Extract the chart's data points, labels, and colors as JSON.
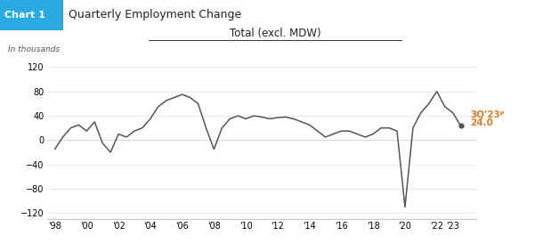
{
  "chart_label": "Chart 1",
  "chart_label_bg": "#29abe2",
  "title_main": "Quarterly Employment Change",
  "subtitle": "Total (excl. MDW)",
  "ylabel": "In thousands",
  "yticks": [
    -120,
    -80,
    -40,
    0,
    40,
    80,
    120
  ],
  "ylim": [
    -130,
    135
  ],
  "annotation_label": "3Q'23ᵖ",
  "annotation_value": "24.0",
  "annotation_color": "#e07b24",
  "line_color": "#555555",
  "zero_line_color": "#cccccc",
  "values": [
    -15,
    5,
    20,
    25,
    15,
    30,
    -5,
    -20,
    10,
    5,
    15,
    20,
    35,
    55,
    65,
    70,
    75,
    70,
    60,
    20,
    -15,
    20,
    35,
    40,
    35,
    40,
    38,
    35,
    37,
    38,
    35,
    30,
    25,
    15,
    5,
    10,
    15,
    15,
    10,
    5,
    10,
    20,
    20,
    15,
    -110,
    20,
    45,
    60,
    80,
    55,
    45,
    24
  ],
  "xtick_labels": [
    "'98",
    "'00",
    "'02",
    "'04",
    "'06",
    "'08",
    "'10",
    "'12",
    "'14",
    "'16",
    "'18",
    "'20",
    "'22",
    "'23"
  ],
  "xtick_positions": [
    0,
    4,
    8,
    12,
    16,
    20,
    24,
    28,
    32,
    36,
    40,
    44,
    48,
    50
  ]
}
